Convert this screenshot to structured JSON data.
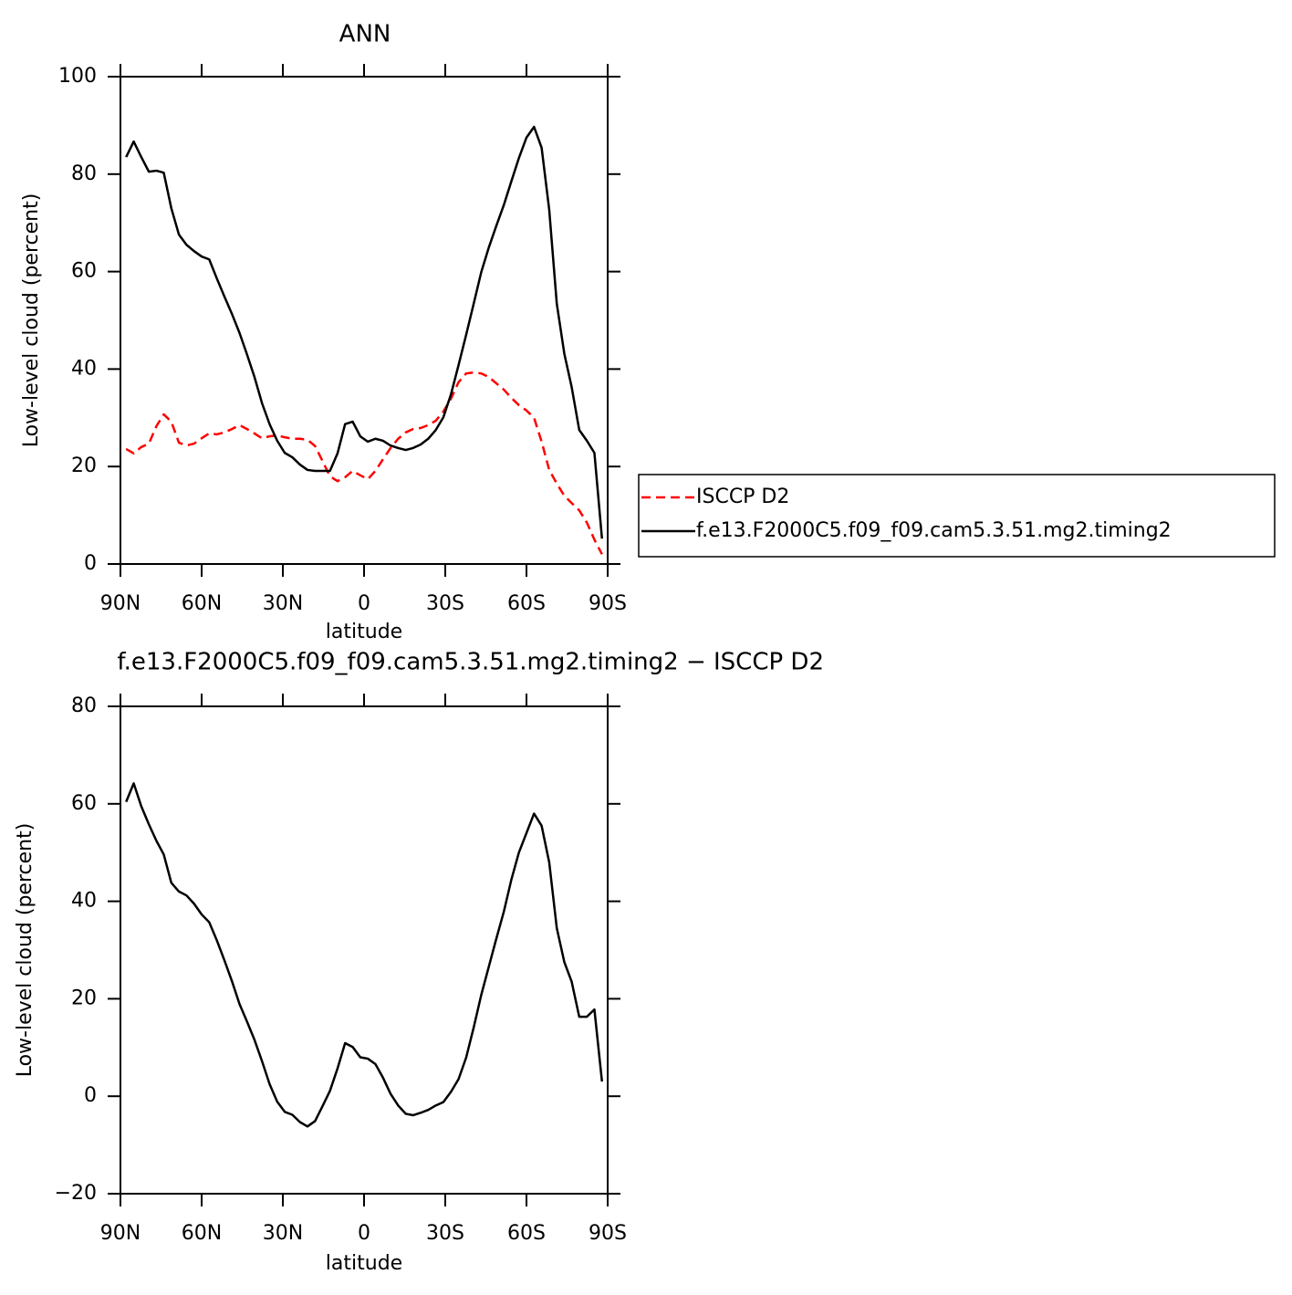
{
  "chart_data": [
    {
      "type": "line",
      "title": "ANN",
      "xlabel": "latitude",
      "ylabel": "Low-level cloud (percent)",
      "x": [
        87.9,
        85.1,
        82.3,
        79.5,
        76.7,
        74.0,
        71.2,
        68.4,
        65.6,
        62.8,
        60.0,
        57.2,
        54.4,
        51.6,
        48.8,
        46.0,
        43.3,
        40.5,
        37.7,
        34.9,
        32.1,
        29.3,
        26.5,
        23.7,
        20.9,
        18.1,
        15.4,
        12.6,
        9.8,
        7.0,
        4.2,
        1.4,
        -1.4,
        -4.2,
        -7.0,
        -9.8,
        -12.6,
        -15.4,
        -18.1,
        -20.9,
        -23.7,
        -26.5,
        -29.3,
        -32.1,
        -34.9,
        -37.7,
        -40.5,
        -43.3,
        -46.0,
        -48.8,
        -51.6,
        -54.4,
        -57.2,
        -60.0,
        -62.8,
        -65.6,
        -68.4,
        -71.2,
        -74.0,
        -76.7,
        -79.5,
        -82.3,
        -85.1,
        -87.9
      ],
      "series": [
        {
          "name": "ISCCP D2",
          "color": "#ff0000",
          "linestyle": "dashed",
          "values": [
            23.6,
            22.7,
            24,
            24.7,
            28.3,
            30.7,
            29.2,
            24.9,
            24.3,
            24.7,
            25.8,
            26.8,
            26.6,
            27,
            27.7,
            28.5,
            27.7,
            26.8,
            25.8,
            26.2,
            26.4,
            26,
            25.7,
            25.7,
            25.5,
            24.2,
            21.2,
            18,
            17,
            17.8,
            19.1,
            18.2,
            17.4,
            19.1,
            21.5,
            23.8,
            25.7,
            27,
            27.7,
            27.9,
            28.5,
            29.4,
            31.3,
            33.9,
            37.3,
            39.1,
            39.3,
            39.1,
            38.4,
            37.1,
            35.8,
            34.1,
            32.6,
            31.5,
            30,
            25.1,
            19.3,
            16.5,
            14,
            12.5,
            11,
            8.5,
            5,
            2
          ]
        },
        {
          "name": "f.e13.F2000C5.f09_f09.cam5.3.51.mg2.timing2",
          "color": "#000000",
          "linestyle": "solid",
          "values": [
            83.5,
            86.7,
            83.5,
            80.5,
            80.7,
            80.3,
            73,
            67.6,
            65.5,
            64.2,
            63.1,
            62.5,
            58.6,
            54.9,
            51.3,
            47.4,
            43.1,
            38.4,
            33,
            28.7,
            25.3,
            22.8,
            21.9,
            20.4,
            19.3,
            19.1,
            19.1,
            19.1,
            22.7,
            28.7,
            29.2,
            26.2,
            25.1,
            25.7,
            25.3,
            24.3,
            23.8,
            23.4,
            23.8,
            24.5,
            25.7,
            27.5,
            30.1,
            34.8,
            40.8,
            47,
            53.4,
            59.9,
            64.8,
            69.3,
            73.6,
            78.5,
            83.3,
            87.5,
            89.7,
            85.4,
            72.7,
            53.4,
            43.1,
            36.3,
            27.5,
            25.3,
            22.8,
            5.2
          ]
        }
      ],
      "xlim": [
        90,
        -90
      ],
      "xticks": [
        {
          "value": 90,
          "label": "90N"
        },
        {
          "value": 60,
          "label": "60N"
        },
        {
          "value": 30,
          "label": "30N"
        },
        0,
        {
          "value": -30,
          "label": "30S"
        },
        {
          "value": -60,
          "label": "60S"
        },
        {
          "value": -90,
          "label": "90S"
        }
      ],
      "ylim": [
        0,
        100
      ],
      "yticks": [
        0,
        20,
        40,
        60,
        80,
        100
      ],
      "legend": "right"
    },
    {
      "type": "line",
      "title": "f.e13.F2000C5.f09_f09.cam5.3.51.mg2.timing2 − ISCCP D2",
      "xlabel": "latitude",
      "ylabel": "Low-level cloud (percent)",
      "x": [
        87.9,
        85.1,
        82.3,
        79.5,
        76.7,
        74.0,
        71.2,
        68.4,
        65.6,
        62.8,
        60.0,
        57.2,
        54.4,
        51.6,
        48.8,
        46.0,
        43.3,
        40.5,
        37.7,
        34.9,
        32.1,
        29.3,
        26.5,
        23.7,
        20.9,
        18.1,
        15.4,
        12.6,
        9.8,
        7.0,
        4.2,
        1.4,
        -1.4,
        -4.2,
        -7.0,
        -9.8,
        -12.6,
        -15.4,
        -18.1,
        -20.9,
        -23.7,
        -26.5,
        -29.3,
        -32.1,
        -34.9,
        -37.7,
        -40.5,
        -43.3,
        -46.0,
        -48.8,
        -51.6,
        -54.4,
        -57.2,
        -60.0,
        -62.8,
        -65.6,
        -68.4,
        -71.2,
        -74.0,
        -76.7,
        -79.5,
        -82.3,
        -85.1,
        -87.9
      ],
      "color": "#000000",
      "values": [
        60.4,
        64.2,
        59.5,
        55.8,
        52.4,
        49.6,
        43.8,
        42,
        41.2,
        39.5,
        37.3,
        35.7,
        32,
        27.9,
        23.6,
        18.9,
        15.4,
        11.6,
        7.2,
        2.5,
        -1.1,
        -3.2,
        -3.8,
        -5.3,
        -6.2,
        -5.1,
        -2.1,
        1.1,
        5.7,
        10.9,
        10.1,
        8,
        7.7,
        6.6,
        3.8,
        0.5,
        -1.9,
        -3.6,
        -3.9,
        -3.4,
        -2.8,
        -1.9,
        -1.2,
        0.9,
        3.5,
        7.9,
        14.1,
        20.8,
        26.4,
        32.2,
        37.8,
        44.4,
        50,
        54,
        58,
        55.5,
        48,
        34.5,
        27.5,
        23.5,
        16.3,
        16.3,
        17.8,
        3
      ],
      "xlim": [
        90,
        -90
      ],
      "xticks": [
        {
          "value": 90,
          "label": "90N"
        },
        {
          "value": 60,
          "label": "60N"
        },
        {
          "value": 30,
          "label": "30N"
        },
        0,
        {
          "value": -30,
          "label": "30S"
        },
        {
          "value": -60,
          "label": "60S"
        },
        {
          "value": -90,
          "label": "90S"
        }
      ],
      "ylim": [
        -20,
        80
      ],
      "yticks": [
        {
          "value": -20,
          "label": "−20"
        },
        0,
        20,
        40,
        60,
        80
      ]
    }
  ]
}
